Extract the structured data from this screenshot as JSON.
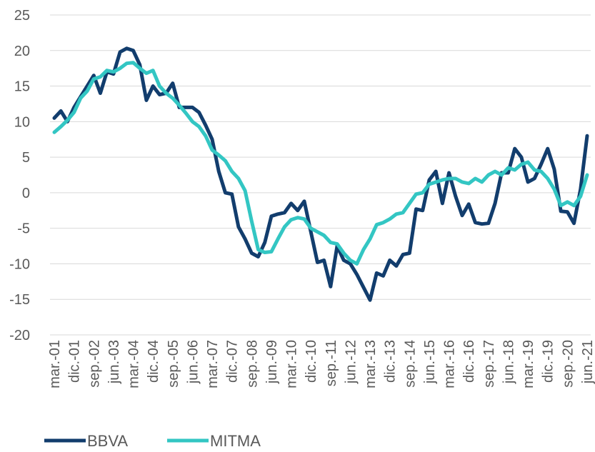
{
  "chart_data": {
    "type": "line",
    "categories": [
      "mar.-01",
      null,
      null,
      "dic.-01",
      null,
      null,
      "sep.-02",
      null,
      null,
      "jun.-03",
      null,
      null,
      "mar.-04",
      null,
      null,
      "dic.-04",
      null,
      null,
      "sep.-05",
      null,
      null,
      "jun.-06",
      null,
      null,
      "mar.-07",
      null,
      null,
      "dic.-07",
      null,
      null,
      "sep.-08",
      null,
      null,
      "jun.-09",
      null,
      null,
      "mar.-10",
      null,
      null,
      "dic.-10",
      null,
      null,
      "sep.-11",
      null,
      null,
      "jun.-12",
      null,
      null,
      "mar.-13",
      null,
      null,
      "dic.-13",
      null,
      null,
      "sep.-14",
      null,
      null,
      "jun.-15",
      null,
      null,
      "mar.-16",
      null,
      null,
      "dic.-16",
      null,
      null,
      "sep.-17",
      null,
      null,
      "jun.-18",
      null,
      null,
      "mar.-19",
      null,
      null,
      "dic.-19",
      null,
      null,
      "sep.-20",
      null,
      null,
      "jun.-21"
    ],
    "series": [
      {
        "name": "BBVA",
        "color": "#123d6d",
        "values": [
          10.5,
          11.5,
          10,
          12,
          13.5,
          15,
          16.5,
          14,
          17,
          16.7,
          19.8,
          20.3,
          20,
          18,
          13,
          15,
          13.8,
          14,
          15.4,
          12,
          12,
          12,
          11.3,
          9.5,
          7.5,
          3,
          0,
          -0.2,
          -4.8,
          -6.5,
          -8.5,
          -9,
          -7,
          -3.3,
          -3,
          -2.8,
          -1.5,
          -2.5,
          -1.2,
          -5.5,
          -9.8,
          -9.5,
          -13.2,
          -7.5,
          -9.5,
          -10,
          -11.5,
          -13.3,
          -15.1,
          -11.3,
          -11.7,
          -9.5,
          -10.3,
          -8.7,
          -8.5,
          -2.3,
          -2.5,
          1.8,
          3,
          -1.5,
          2.8,
          -0.5,
          -3.2,
          -1.6,
          -4.2,
          -4.4,
          -4.3,
          -1.5,
          2.8,
          2.8,
          6.2,
          5,
          1.5,
          2,
          4,
          6.2,
          3.3,
          -2.6,
          -2.7,
          -4.3,
          0.5,
          8
        ]
      },
      {
        "name": "MITMA",
        "color": "#33c6c3",
        "values": [
          8.5,
          9.3,
          10.2,
          11.3,
          13.3,
          14.3,
          16,
          16.3,
          17.2,
          17,
          17.5,
          18.2,
          18.3,
          17.5,
          16.8,
          17.2,
          15,
          14,
          13.3,
          12.3,
          11.2,
          10,
          9.3,
          8,
          6,
          5.3,
          4.5,
          3,
          2,
          0.3,
          -4,
          -8,
          -8.4,
          -8.3,
          -6.5,
          -4.8,
          -3.8,
          -3.5,
          -3.7,
          -5,
          -5.5,
          -6,
          -7,
          -7.2,
          -8.5,
          -9.5,
          -10,
          -8,
          -6.5,
          -4.5,
          -4.2,
          -3.7,
          -3,
          -2.8,
          -1.5,
          -0.2,
          0,
          1.2,
          1.5,
          1.8,
          2,
          2,
          1.5,
          1.3,
          2,
          1.5,
          2.5,
          3,
          2.5,
          3.5,
          3.2,
          4,
          4.3,
          3.2,
          3,
          2,
          0.5,
          -1.8,
          -1.3,
          -1.8,
          -0.5,
          2.5
        ]
      }
    ],
    "ylim": [
      -20,
      25
    ],
    "yticks": [
      -20,
      -15,
      -10,
      -5,
      0,
      5,
      10,
      15,
      20,
      25
    ],
    "grid": true,
    "legend": "bottom-left"
  }
}
